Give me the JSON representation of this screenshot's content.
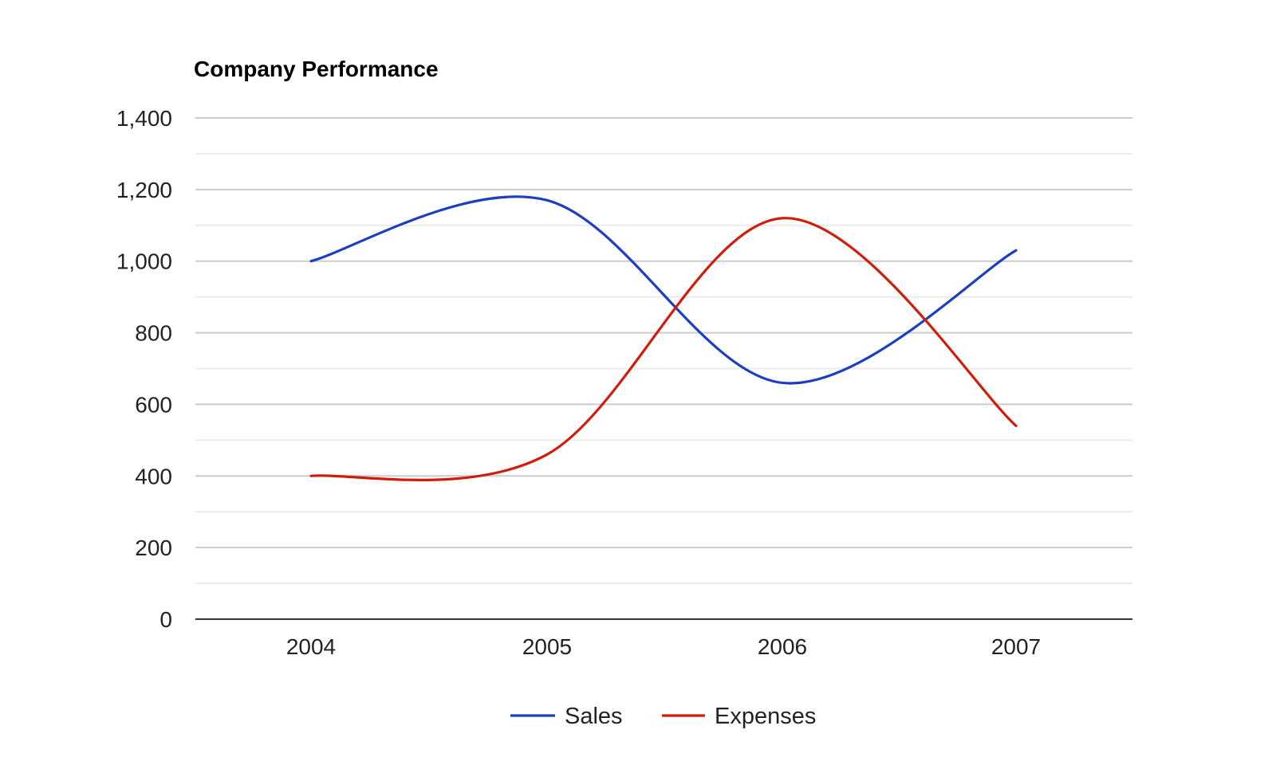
{
  "chart_data": {
    "type": "line",
    "title": "Company Performance",
    "categories": [
      "2004",
      "2005",
      "2006",
      "2007"
    ],
    "series": [
      {
        "name": "Sales",
        "values": [
          1000,
          1170,
          660,
          1030
        ],
        "color": "#1c3fbf"
      },
      {
        "name": "Expenses",
        "values": [
          400,
          460,
          1120,
          540
        ],
        "color": "#d01c0b"
      }
    ],
    "y_ticks": [
      "0",
      "200",
      "400",
      "600",
      "800",
      "1,000",
      "1,200",
      "1,400"
    ],
    "y_tick_values": [
      0,
      200,
      400,
      600,
      800,
      1000,
      1200,
      1400
    ],
    "ylim": [
      0,
      1400
    ],
    "xlabel": "",
    "ylabel": "",
    "grid": true,
    "legend": "bottom",
    "curve": "smooth"
  }
}
